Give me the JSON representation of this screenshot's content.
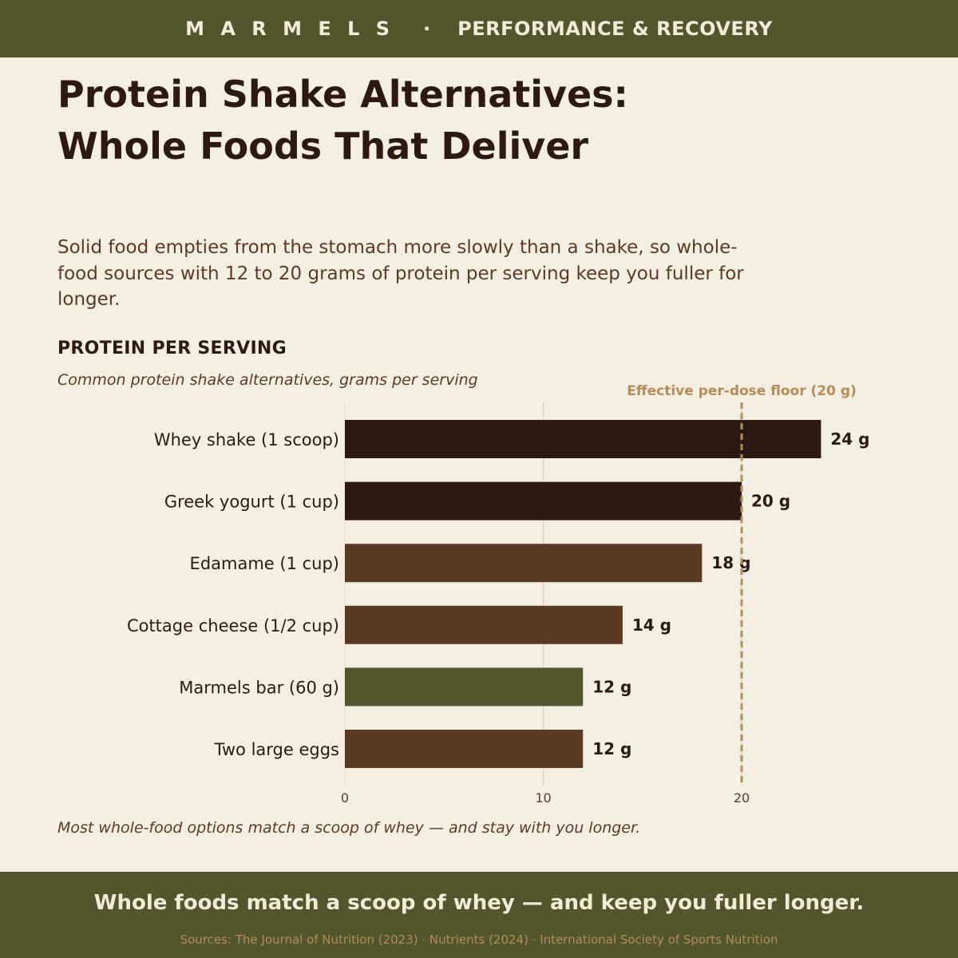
{
  "header": {
    "brand": "M A R M E L S",
    "separator": "·",
    "section": "PERFORMANCE & RECOVERY"
  },
  "title_lines": [
    "Protein Shake Alternatives:",
    "Whole Foods That Deliver"
  ],
  "intro": "Solid food empties from the stomach more slowly than a shake, so whole-food sources with 12 to 20 grams of protein per serving keep you fuller for longer.",
  "chart_heading": "PROTEIN PER SERVING",
  "chart_subtitle": "Common protein shake alternatives, grams per serving",
  "chart_data": {
    "type": "bar",
    "orientation": "horizontal",
    "categories": [
      "Whey shake (1 scoop)",
      "Greek yogurt (1 cup)",
      "Edamame (1 cup)",
      "Cottage cheese (1/2 cup)",
      "Marmels bar (60 g)",
      "Two large eggs"
    ],
    "values": [
      24,
      20,
      18,
      14,
      12,
      12
    ],
    "value_labels": [
      "24 g",
      "20 g",
      "18 g",
      "14 g",
      "12 g",
      "12 g"
    ],
    "bar_colors": [
      "#2c1912",
      "#2c1912",
      "#5c3a22",
      "#5c3a22",
      "#53552c",
      "#5c3a22"
    ],
    "x_ticks": [
      "0",
      "10",
      "20"
    ],
    "x_tick_values": [
      0,
      10,
      20
    ],
    "xlim": [
      0,
      28
    ],
    "reference_line": {
      "value": 20,
      "label": "Effective per-dose floor (20 g)",
      "color": "#b38e56",
      "style": "dashed"
    },
    "grid": "vertical"
  },
  "caption": "Most whole-food options match a scoop of whey — and stay with you longer.",
  "footer": {
    "tagline": "Whole foods match a scoop of whey — and keep you fuller longer.",
    "sources": "Sources: The Journal of Nutrition (2023) · Nutrients (2024) · International Society of Sports Nutrition"
  },
  "colors": {
    "band": "#53552c",
    "background": "#f5eee3",
    "dark_text": "#2c1912",
    "body_text": "#5c3a24",
    "accent": "#b38e56"
  }
}
